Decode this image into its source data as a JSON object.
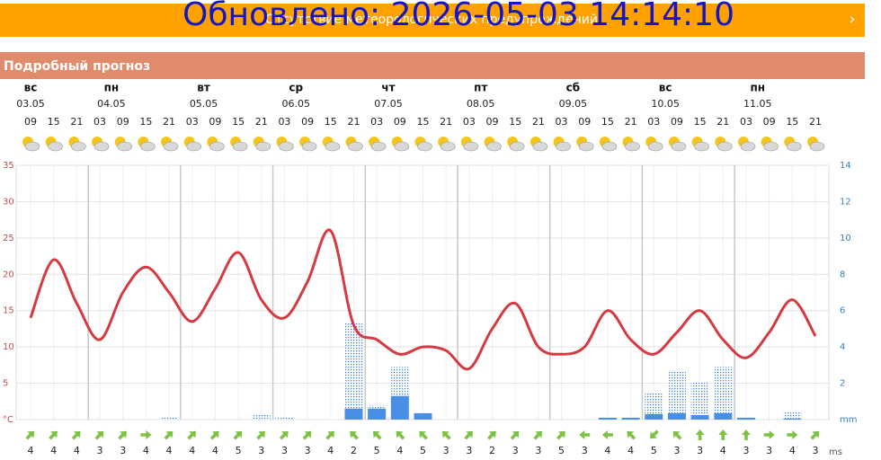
{
  "header": {
    "banner_text": "Отсутствие метеорологических предупреждений",
    "updated": "Обновлено: 2026-05-03 14:14:10"
  },
  "section_title": "Подробный прогноз",
  "days": [
    {
      "name": "вс",
      "date": "03.05"
    },
    {
      "name": "пн",
      "date": "04.05"
    },
    {
      "name": "вт",
      "date": "05.05"
    },
    {
      "name": "ср",
      "date": "06.05"
    },
    {
      "name": "чт",
      "date": "07.05"
    },
    {
      "name": "пт",
      "date": "08.05"
    },
    {
      "name": "сб",
      "date": "09.05"
    },
    {
      "name": "вс",
      "date": "10.05"
    },
    {
      "name": "пн",
      "date": "11.05"
    }
  ],
  "chart_data": {
    "type": "line",
    "x": [
      "09",
      "15",
      "21",
      "03",
      "09",
      "15",
      "21",
      "03",
      "09",
      "15",
      "21",
      "03",
      "09",
      "15",
      "21",
      "03",
      "09",
      "15",
      "21",
      "03",
      "09",
      "15",
      "21",
      "03",
      "09",
      "15",
      "21",
      "03",
      "09",
      "15",
      "21",
      "03",
      "09",
      "15",
      "21"
    ],
    "series": [
      {
        "type": "line",
        "color": "#d63a41",
        "values": [
          14,
          22,
          16,
          11,
          17.5,
          21,
          17.5,
          13.5,
          18,
          23,
          16.5,
          14,
          19,
          26,
          13,
          11,
          9,
          10,
          9.5,
          7,
          12.5,
          16,
          10,
          9,
          10,
          15,
          11,
          9,
          12,
          15,
          11,
          8.5,
          12,
          16.5,
          11.5
        ]
      },
      {
        "type": "bar",
        "pattern": "dotted",
        "color": "#3f86df",
        "axis": "y2",
        "values": [
          0,
          0,
          0,
          0,
          0,
          0,
          0.1,
          0,
          0,
          0,
          0.3,
          0.1,
          0,
          0,
          5.3,
          0.8,
          2.9,
          0,
          0,
          0,
          0,
          0,
          0,
          0,
          0,
          0,
          0,
          1.5,
          2.7,
          2.1,
          2.9,
          0.1,
          0.05,
          0.4,
          0
        ]
      },
      {
        "type": "bar",
        "pattern": "solid",
        "color": "#4a8fe6",
        "axis": "y2",
        "values": [
          0,
          0,
          0,
          0,
          0,
          0,
          0,
          0,
          0,
          0,
          0,
          0,
          0,
          0,
          0.6,
          0.6,
          1.3,
          0.35,
          0,
          0,
          0,
          0,
          0,
          0,
          0,
          0.1,
          0.1,
          0.3,
          0.35,
          0.25,
          0.35,
          0.1,
          0,
          0.05,
          0
        ]
      }
    ],
    "ylim": [
      0,
      35
    ],
    "yticks": [
      {
        "value": 0,
        "label": "°C"
      },
      5,
      10,
      15,
      20,
      25,
      30,
      35
    ],
    "y2lim": [
      0,
      14
    ],
    "y2ticks": [
      {
        "value": 0,
        "label": "mm"
      },
      2,
      4,
      6,
      8,
      10,
      12,
      14
    ],
    "grid": true
  },
  "wind": {
    "unit": "ms",
    "color": "#7dc242",
    "speeds": [
      "4",
      "4",
      "4",
      "3",
      "3",
      "4",
      "4",
      "4",
      "4",
      "5",
      "3",
      "3",
      "3",
      "4",
      "2",
      "5",
      "4",
      "5",
      "3",
      "3",
      "2",
      "3",
      "3",
      "5",
      "3",
      "4",
      "4",
      "5",
      "3",
      "3",
      "4",
      "3",
      "3",
      "4",
      "3"
    ],
    "direction_deg": [
      45,
      45,
      45,
      45,
      45,
      90,
      45,
      45,
      45,
      45,
      45,
      45,
      45,
      45,
      315,
      315,
      315,
      315,
      315,
      45,
      45,
      45,
      45,
      45,
      270,
      270,
      315,
      225,
      315,
      0,
      0,
      0,
      90,
      90,
      45
    ]
  }
}
